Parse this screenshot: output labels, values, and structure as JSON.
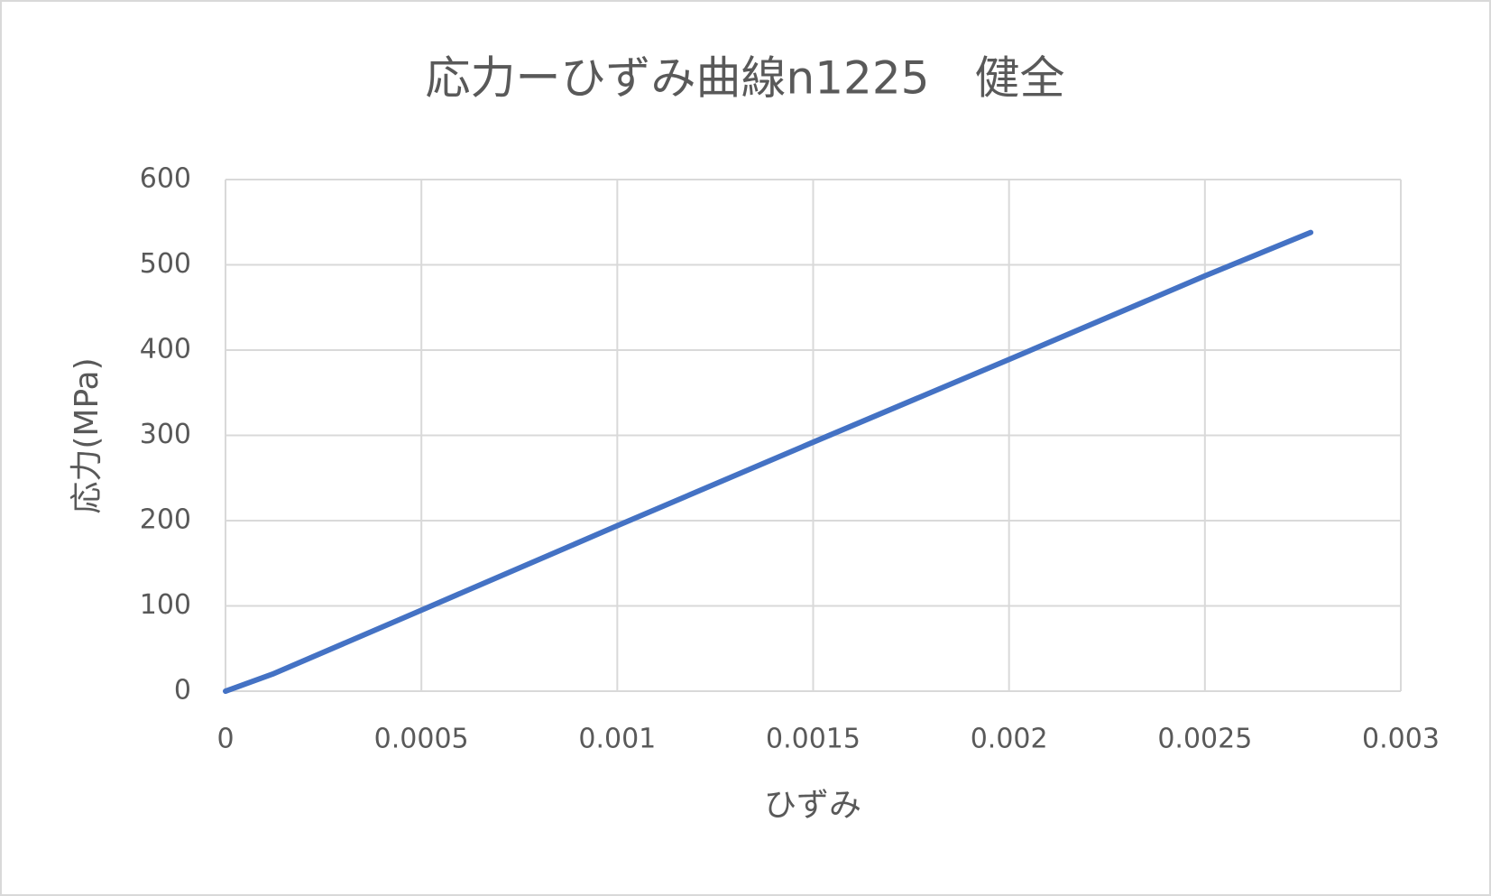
{
  "chart_data": {
    "type": "line",
    "title": "応力ーひずみ曲線n1225　健全",
    "x_label": "ひずみ",
    "y_label": "応力(MPa)",
    "x": [
      0,
      0.00012,
      0.0005,
      0.001,
      0.0015,
      0.002,
      0.0025,
      0.00277
    ],
    "values": [
      0,
      20,
      95,
      194,
      292,
      389,
      487,
      538
    ],
    "color": "#4472c4",
    "xlim": [
      0,
      0.003
    ],
    "xticks": [
      0,
      0.0005,
      0.001,
      0.0015,
      0.002,
      0.0025,
      0.003
    ],
    "ylim": [
      0,
      600
    ],
    "yticks": [
      0,
      100,
      200,
      300,
      400,
      500,
      600
    ],
    "grid": true
  }
}
